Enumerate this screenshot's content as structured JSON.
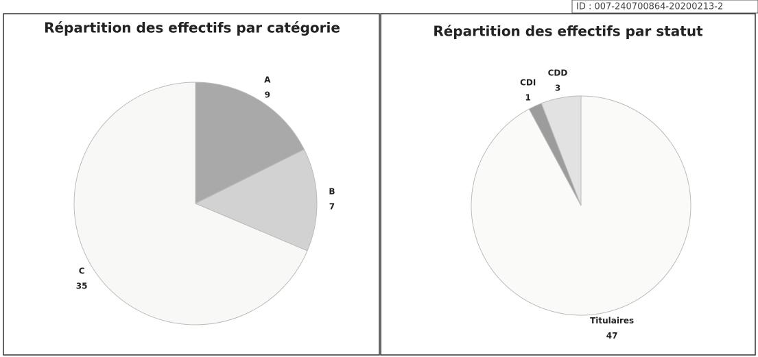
{
  "stamp": "ID : 007-240700864-20200213-2",
  "chart_data": [
    {
      "type": "pie",
      "title": "Répartition des effectifs par catégorie",
      "categories": [
        "A",
        "B",
        "C"
      ],
      "values": [
        9,
        7,
        35
      ],
      "colors": [
        "#a9a9a9",
        "#d2d2d2",
        "#f8f8f6"
      ]
    },
    {
      "type": "pie",
      "title": "Répartition des effectifs par statut",
      "categories": [
        "Titulaires",
        "CDI",
        "CDD"
      ],
      "values": [
        47,
        1,
        3
      ],
      "colors": [
        "#fafaf8",
        "#9c9c9c",
        "#e2e2e2"
      ]
    }
  ]
}
